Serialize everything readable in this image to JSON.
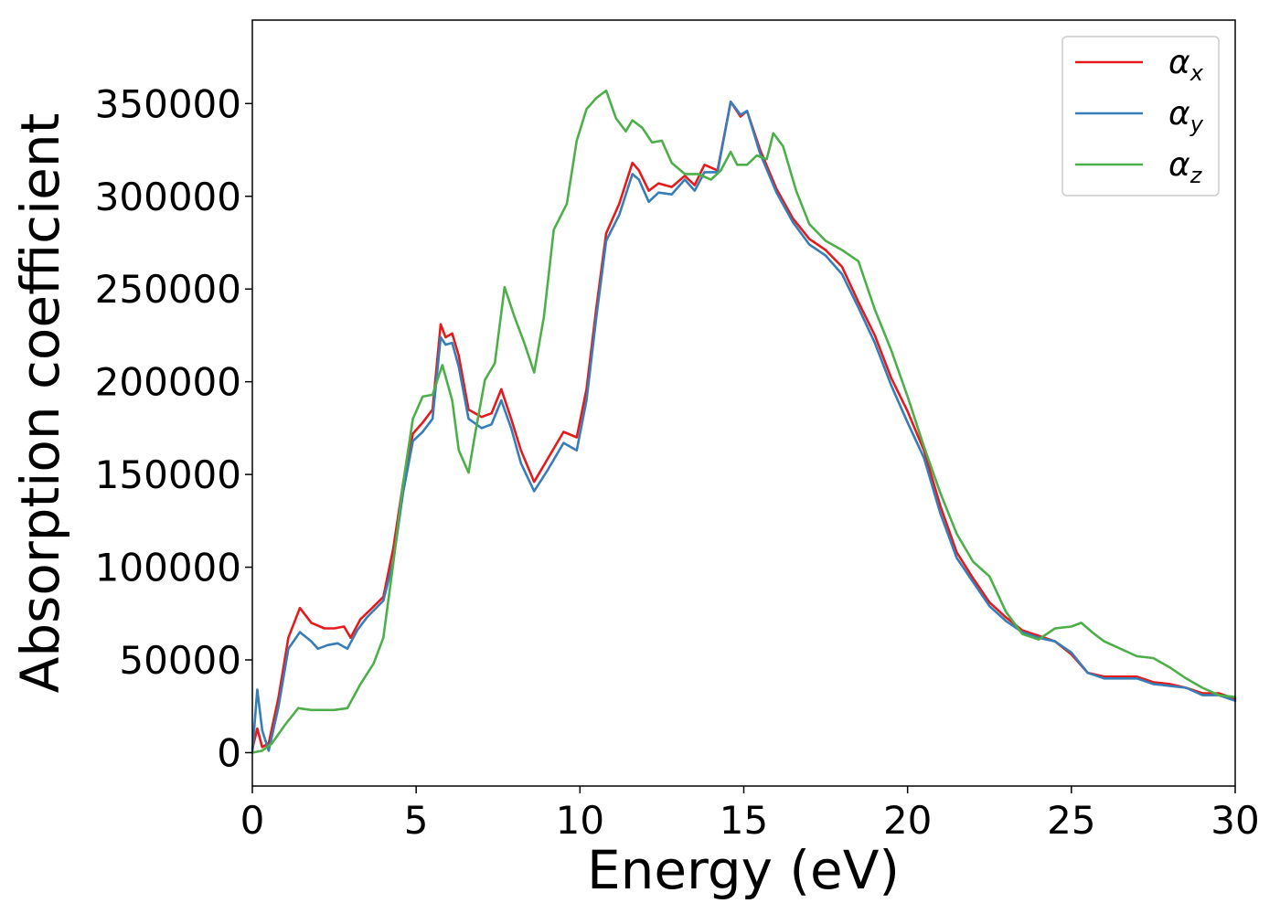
{
  "chart_data": {
    "type": "line",
    "title": "",
    "xlabel": "Energy (eV)",
    "ylabel": "Absorption coefficient",
    "xlim": [
      0,
      30
    ],
    "ylim": [
      -18000,
      395000
    ],
    "x_ticks": [
      0,
      5,
      10,
      15,
      20,
      25,
      30
    ],
    "y_ticks": [
      0,
      50000,
      100000,
      150000,
      200000,
      250000,
      300000,
      350000
    ],
    "x_tick_labels": [
      "0",
      "5",
      "10",
      "15",
      "20",
      "25",
      "30"
    ],
    "y_tick_labels": [
      "0",
      "50000",
      "100000",
      "150000",
      "200000",
      "250000",
      "300000",
      "350000"
    ],
    "grid": false,
    "legend_position": "top-right",
    "series": [
      {
        "name": "α",
        "subscript": "x",
        "color": "#e41a1c",
        "points": [
          [
            0,
            2000
          ],
          [
            0.15,
            13000
          ],
          [
            0.3,
            3000
          ],
          [
            0.5,
            5000
          ],
          [
            0.8,
            30000
          ],
          [
            1.1,
            62000
          ],
          [
            1.45,
            78000
          ],
          [
            1.8,
            70000
          ],
          [
            2.2,
            67000
          ],
          [
            2.5,
            67000
          ],
          [
            2.8,
            68000
          ],
          [
            3.0,
            62000
          ],
          [
            3.3,
            72000
          ],
          [
            3.6,
            77000
          ],
          [
            4.0,
            84000
          ],
          [
            4.3,
            110000
          ],
          [
            4.6,
            145000
          ],
          [
            4.9,
            172000
          ],
          [
            5.2,
            178000
          ],
          [
            5.5,
            185000
          ],
          [
            5.75,
            231000
          ],
          [
            5.9,
            224000
          ],
          [
            6.1,
            226000
          ],
          [
            6.3,
            214000
          ],
          [
            6.6,
            185000
          ],
          [
            7.0,
            181000
          ],
          [
            7.3,
            183000
          ],
          [
            7.6,
            196000
          ],
          [
            7.9,
            180000
          ],
          [
            8.2,
            163000
          ],
          [
            8.6,
            146000
          ],
          [
            9.0,
            158000
          ],
          [
            9.5,
            173000
          ],
          [
            9.9,
            170000
          ],
          [
            10.2,
            196000
          ],
          [
            10.5,
            240000
          ],
          [
            10.8,
            280000
          ],
          [
            11.2,
            296000
          ],
          [
            11.6,
            318000
          ],
          [
            11.8,
            314000
          ],
          [
            12.1,
            303000
          ],
          [
            12.4,
            307000
          ],
          [
            12.8,
            305000
          ],
          [
            13.2,
            311000
          ],
          [
            13.5,
            306000
          ],
          [
            13.8,
            317000
          ],
          [
            14.2,
            314000
          ],
          [
            14.6,
            351000
          ],
          [
            14.9,
            343000
          ],
          [
            15.1,
            346000
          ],
          [
            15.5,
            325000
          ],
          [
            16.0,
            304000
          ],
          [
            16.5,
            288000
          ],
          [
            17.0,
            277000
          ],
          [
            17.5,
            271000
          ],
          [
            18.0,
            262000
          ],
          [
            18.5,
            243000
          ],
          [
            19.0,
            225000
          ],
          [
            19.5,
            202000
          ],
          [
            20.0,
            184000
          ],
          [
            20.5,
            163000
          ],
          [
            21.0,
            133000
          ],
          [
            21.5,
            108000
          ],
          [
            22.0,
            94000
          ],
          [
            22.5,
            81000
          ],
          [
            23.0,
            73000
          ],
          [
            23.5,
            66000
          ],
          [
            24.0,
            63000
          ],
          [
            24.5,
            60000
          ],
          [
            25.0,
            53000
          ],
          [
            25.5,
            43000
          ],
          [
            26.0,
            41000
          ],
          [
            26.5,
            41000
          ],
          [
            27.0,
            41000
          ],
          [
            27.5,
            38000
          ],
          [
            28.0,
            37000
          ],
          [
            28.5,
            35000
          ],
          [
            29.0,
            32000
          ],
          [
            29.5,
            32000
          ],
          [
            30.0,
            29000
          ]
        ]
      },
      {
        "name": "α",
        "subscript": "y",
        "color": "#377eb8",
        "points": [
          [
            0,
            0
          ],
          [
            0.15,
            34000
          ],
          [
            0.3,
            12000
          ],
          [
            0.5,
            1000
          ],
          [
            0.8,
            25000
          ],
          [
            1.1,
            56000
          ],
          [
            1.45,
            65000
          ],
          [
            1.8,
            60000
          ],
          [
            2.0,
            56000
          ],
          [
            2.3,
            58000
          ],
          [
            2.6,
            59000
          ],
          [
            2.9,
            56000
          ],
          [
            3.2,
            66000
          ],
          [
            3.5,
            73000
          ],
          [
            4.0,
            82000
          ],
          [
            4.3,
            103000
          ],
          [
            4.6,
            140000
          ],
          [
            4.9,
            168000
          ],
          [
            5.2,
            173000
          ],
          [
            5.5,
            180000
          ],
          [
            5.75,
            224000
          ],
          [
            5.9,
            220000
          ],
          [
            6.1,
            221000
          ],
          [
            6.3,
            208000
          ],
          [
            6.6,
            180000
          ],
          [
            7.0,
            175000
          ],
          [
            7.3,
            177000
          ],
          [
            7.6,
            190000
          ],
          [
            7.9,
            175000
          ],
          [
            8.2,
            156000
          ],
          [
            8.6,
            141000
          ],
          [
            9.0,
            152000
          ],
          [
            9.5,
            167000
          ],
          [
            9.9,
            163000
          ],
          [
            10.2,
            190000
          ],
          [
            10.5,
            235000
          ],
          [
            10.8,
            276000
          ],
          [
            11.2,
            290000
          ],
          [
            11.6,
            312000
          ],
          [
            11.8,
            309000
          ],
          [
            12.1,
            297000
          ],
          [
            12.4,
            302000
          ],
          [
            12.8,
            301000
          ],
          [
            13.2,
            309000
          ],
          [
            13.5,
            303000
          ],
          [
            13.8,
            313000
          ],
          [
            14.2,
            313000
          ],
          [
            14.6,
            351000
          ],
          [
            14.9,
            344000
          ],
          [
            15.1,
            346000
          ],
          [
            15.5,
            323000
          ],
          [
            16.0,
            302000
          ],
          [
            16.5,
            286000
          ],
          [
            17.0,
            274000
          ],
          [
            17.5,
            268000
          ],
          [
            18.0,
            258000
          ],
          [
            18.5,
            240000
          ],
          [
            19.0,
            221000
          ],
          [
            19.5,
            198000
          ],
          [
            20.0,
            178000
          ],
          [
            20.5,
            159000
          ],
          [
            21.0,
            129000
          ],
          [
            21.5,
            105000
          ],
          [
            22.0,
            92000
          ],
          [
            22.5,
            79000
          ],
          [
            23.0,
            71000
          ],
          [
            23.5,
            65000
          ],
          [
            24.0,
            62000
          ],
          [
            24.5,
            60000
          ],
          [
            25.0,
            54000
          ],
          [
            25.5,
            43000
          ],
          [
            26.0,
            40000
          ],
          [
            26.5,
            40000
          ],
          [
            27.0,
            40000
          ],
          [
            27.5,
            37000
          ],
          [
            28.0,
            36000
          ],
          [
            28.5,
            35000
          ],
          [
            29.0,
            31000
          ],
          [
            29.5,
            31000
          ],
          [
            30.0,
            28000
          ]
        ]
      },
      {
        "name": "α",
        "subscript": "z",
        "color": "#4daf4a",
        "points": [
          [
            0,
            0
          ],
          [
            0.3,
            1000
          ],
          [
            0.6,
            5000
          ],
          [
            1.0,
            15000
          ],
          [
            1.4,
            24000
          ],
          [
            1.8,
            23000
          ],
          [
            2.2,
            23000
          ],
          [
            2.5,
            23000
          ],
          [
            2.9,
            24000
          ],
          [
            3.3,
            37000
          ],
          [
            3.7,
            48000
          ],
          [
            4.0,
            62000
          ],
          [
            4.3,
            102000
          ],
          [
            4.6,
            145000
          ],
          [
            4.9,
            180000
          ],
          [
            5.2,
            192000
          ],
          [
            5.5,
            193000
          ],
          [
            5.8,
            209000
          ],
          [
            6.1,
            190000
          ],
          [
            6.3,
            163000
          ],
          [
            6.6,
            151000
          ],
          [
            6.8,
            172000
          ],
          [
            7.1,
            201000
          ],
          [
            7.4,
            210000
          ],
          [
            7.7,
            251000
          ],
          [
            8.0,
            235000
          ],
          [
            8.3,
            221000
          ],
          [
            8.6,
            205000
          ],
          [
            8.9,
            235000
          ],
          [
            9.2,
            282000
          ],
          [
            9.6,
            296000
          ],
          [
            9.9,
            330000
          ],
          [
            10.2,
            347000
          ],
          [
            10.5,
            353000
          ],
          [
            10.8,
            357000
          ],
          [
            11.1,
            342000
          ],
          [
            11.4,
            335000
          ],
          [
            11.6,
            341000
          ],
          [
            11.9,
            337000
          ],
          [
            12.2,
            329000
          ],
          [
            12.5,
            330000
          ],
          [
            12.8,
            318000
          ],
          [
            13.2,
            312000
          ],
          [
            13.6,
            312000
          ],
          [
            14.0,
            309000
          ],
          [
            14.3,
            314000
          ],
          [
            14.6,
            324000
          ],
          [
            14.8,
            317000
          ],
          [
            15.1,
            317000
          ],
          [
            15.4,
            322000
          ],
          [
            15.7,
            320000
          ],
          [
            15.9,
            334000
          ],
          [
            16.2,
            327000
          ],
          [
            16.6,
            303000
          ],
          [
            17.0,
            285000
          ],
          [
            17.5,
            276000
          ],
          [
            18.0,
            271000
          ],
          [
            18.5,
            265000
          ],
          [
            19.0,
            239000
          ],
          [
            19.5,
            217000
          ],
          [
            20.0,
            192000
          ],
          [
            20.5,
            165000
          ],
          [
            21.0,
            140000
          ],
          [
            21.5,
            118000
          ],
          [
            22.0,
            103000
          ],
          [
            22.5,
            95000
          ],
          [
            23.0,
            76000
          ],
          [
            23.5,
            64000
          ],
          [
            24.0,
            61000
          ],
          [
            24.5,
            67000
          ],
          [
            25.0,
            68000
          ],
          [
            25.3,
            70000
          ],
          [
            25.7,
            64000
          ],
          [
            26.0,
            60000
          ],
          [
            26.5,
            56000
          ],
          [
            27.0,
            52000
          ],
          [
            27.5,
            51000
          ],
          [
            28.0,
            46000
          ],
          [
            28.5,
            40000
          ],
          [
            29.0,
            35000
          ],
          [
            29.5,
            31000
          ],
          [
            30.0,
            30000
          ]
        ]
      }
    ]
  }
}
